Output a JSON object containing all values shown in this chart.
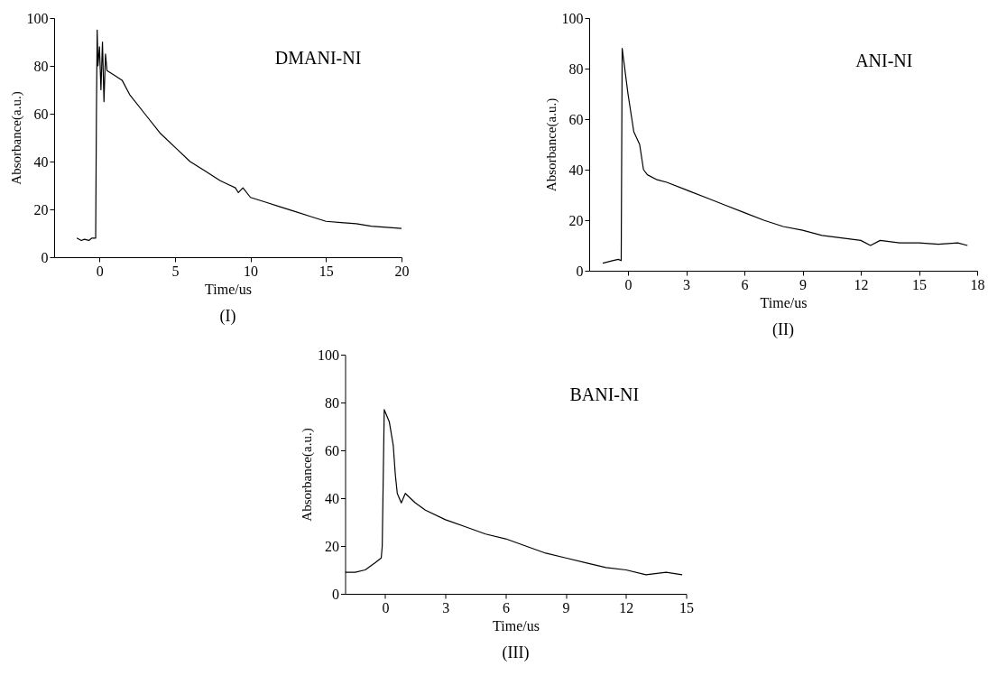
{
  "chart_data": [
    {
      "type": "line",
      "xlabel": "Time/us",
      "ylabel": "Absorbance(a.u.)",
      "xlim": [
        -3,
        20
      ],
      "ylim": [
        0,
        100
      ],
      "xticks": [
        0,
        5,
        10,
        15,
        20
      ],
      "yticks": [
        0,
        20,
        40,
        60,
        80,
        100
      ],
      "grid": false,
      "annotations": [
        "DMANI-NI",
        "(I)"
      ],
      "series": [
        {
          "color": "#000000",
          "x": [
            -1.5,
            -1.2,
            -1,
            -0.7,
            -0.5,
            -0.25,
            -0.2,
            -0.15,
            -0.1,
            0,
            0.1,
            0.2,
            0.3,
            0.4,
            0.5,
            1,
            1.5,
            2,
            3,
            4,
            5,
            6,
            7,
            8,
            9,
            9.2,
            9.5,
            10,
            11,
            12,
            13,
            14,
            15,
            16,
            17,
            18,
            19,
            20
          ],
          "values": [
            8,
            7,
            7.5,
            7,
            8,
            8,
            60,
            95,
            80,
            88,
            70,
            90,
            65,
            85,
            78,
            76,
            74,
            68,
            60,
            52,
            46,
            40,
            36,
            32,
            29,
            27,
            29,
            25,
            23,
            21,
            19,
            17,
            15,
            14.5,
            14,
            13,
            12.5,
            12
          ]
        }
      ]
    },
    {
      "type": "line",
      "xlabel": "Time/us",
      "ylabel": "Absorbance(a.u.)",
      "xlim": [
        -2,
        18
      ],
      "ylim": [
        0,
        100
      ],
      "xticks": [
        0,
        3,
        6,
        9,
        12,
        15,
        18
      ],
      "yticks": [
        0,
        20,
        40,
        60,
        80,
        100
      ],
      "grid": false,
      "annotations": [
        "ANI-NI",
        "(II)"
      ],
      "series": [
        {
          "color": "#000000",
          "x": [
            -1.3,
            -0.8,
            -0.5,
            -0.35,
            -0.3,
            -0.2,
            0,
            0.2,
            0.3,
            0.6,
            0.8,
            1,
            1.5,
            2,
            3,
            4,
            5,
            6,
            7,
            8,
            9,
            10,
            11,
            12,
            12.5,
            13,
            14,
            15,
            16,
            17,
            17.5
          ],
          "values": [
            3,
            4,
            4.5,
            4,
            88,
            82,
            70,
            60,
            55,
            50,
            40,
            38,
            36,
            35,
            32,
            29,
            26,
            23,
            20,
            17.5,
            16,
            14,
            13,
            12,
            10,
            12,
            11,
            11,
            10.5,
            11,
            10
          ]
        }
      ]
    },
    {
      "type": "line",
      "xlabel": "Time/us",
      "ylabel": "Absorbance(a.u.)",
      "xlim": [
        -2,
        15
      ],
      "ylim": [
        0,
        100
      ],
      "xticks": [
        0,
        3,
        6,
        9,
        12,
        15
      ],
      "yticks": [
        0,
        20,
        40,
        60,
        80,
        100
      ],
      "grid": false,
      "annotations": [
        "BANI-NI",
        "(III)"
      ],
      "series": [
        {
          "color": "#000000",
          "x": [
            -2,
            -1.5,
            -1,
            -0.5,
            -0.2,
            -0.15,
            -0.05,
            0.2,
            0.4,
            0.5,
            0.6,
            0.8,
            1,
            1.5,
            2,
            3,
            4,
            5,
            6,
            7,
            8,
            9,
            10,
            11,
            12,
            13,
            14,
            14.8
          ],
          "values": [
            9,
            9,
            10,
            13,
            15,
            20,
            77,
            72,
            62,
            50,
            42,
            38,
            42,
            38,
            35,
            31,
            28,
            25,
            23,
            20,
            17,
            15,
            13,
            11,
            10,
            8,
            9,
            8
          ]
        }
      ]
    }
  ]
}
